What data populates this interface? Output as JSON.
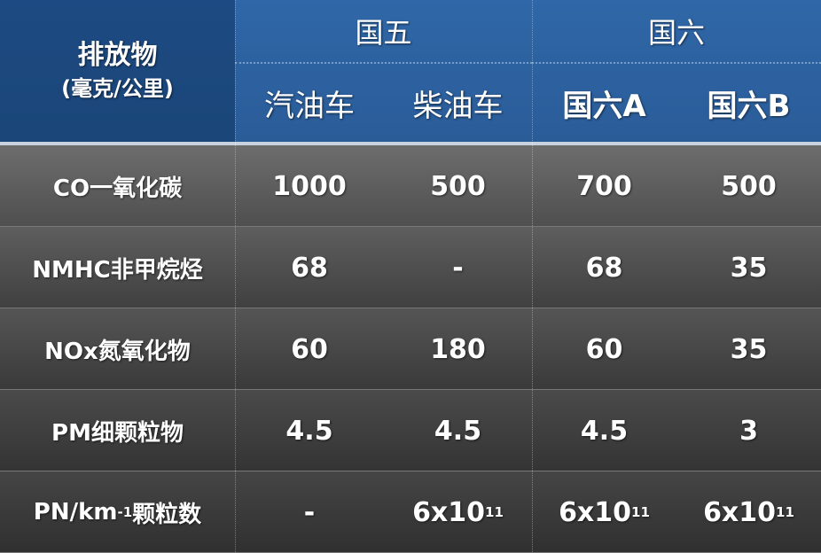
{
  "chart_data": {
    "type": "table",
    "header": {
      "label": "排放物",
      "unit": "(毫克/公里)"
    },
    "groups": [
      {
        "label": "国五",
        "span": 2
      },
      {
        "label": "国六",
        "span": 2
      }
    ],
    "columns": [
      "汽油车",
      "柴油车",
      "国六A",
      "国六B"
    ],
    "rows": [
      {
        "label": "CO一氧化碳",
        "values": [
          "1000",
          "500",
          "700",
          "500"
        ]
      },
      {
        "label": "NMHC非甲烷烃",
        "values": [
          "68",
          "-",
          "68",
          "35"
        ]
      },
      {
        "label": "NOx氮氧化物",
        "values": [
          "60",
          "180",
          "60",
          "35"
        ]
      },
      {
        "label": "PM细颗粒物",
        "values": [
          "4.5",
          "4.5",
          "4.5",
          "3"
        ]
      },
      {
        "label": "PN/km",
        "label_sup": "-1",
        "label_suffix": "颗粒数",
        "values": [
          "-",
          "6x10^11",
          "6x10^11",
          "6x10^11"
        ]
      }
    ],
    "colors": {
      "header_dark": "#1d4a82",
      "header": "#2f67a8",
      "row_top": "#6a6a6a",
      "row_bottom": "#353535"
    }
  }
}
